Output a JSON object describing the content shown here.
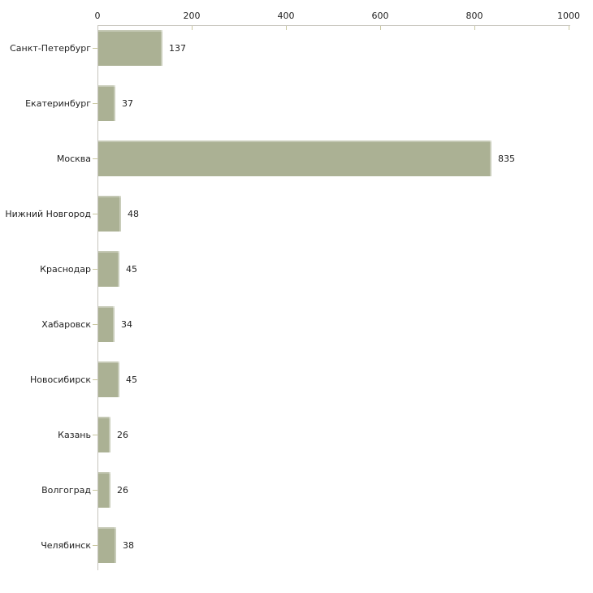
{
  "chart_data": {
    "type": "bar",
    "orientation": "horizontal",
    "title": "",
    "xlabel": "",
    "ylabel": "",
    "categories": [
      "Санкт-Петербург",
      "Екатеринбург",
      "Москва",
      "Нижний Новгород",
      "Краснодар",
      "Хабаровск",
      "Новосибирск",
      "Казань",
      "Волгоград",
      "Челябинск"
    ],
    "values": [
      137,
      37,
      835,
      48,
      45,
      34,
      45,
      26,
      26,
      38
    ],
    "value_labels": [
      "137",
      "37",
      "835",
      "48",
      "45",
      "34",
      "45",
      "26",
      "26",
      "38"
    ],
    "x_ticks": [
      0,
      200,
      400,
      600,
      800,
      1000
    ],
    "x_tick_labels": [
      "0",
      "200",
      "400",
      "600",
      "800",
      "1000"
    ],
    "xlim": [
      0,
      1000
    ],
    "grid": false,
    "legend": "none",
    "axis_position": "top",
    "colors": {
      "bar": "#abb194",
      "axis_line": "#c6c4bc",
      "tick_mark": "#c9c7a0",
      "text": "#1f1f1f",
      "background": "#ffffff"
    }
  }
}
